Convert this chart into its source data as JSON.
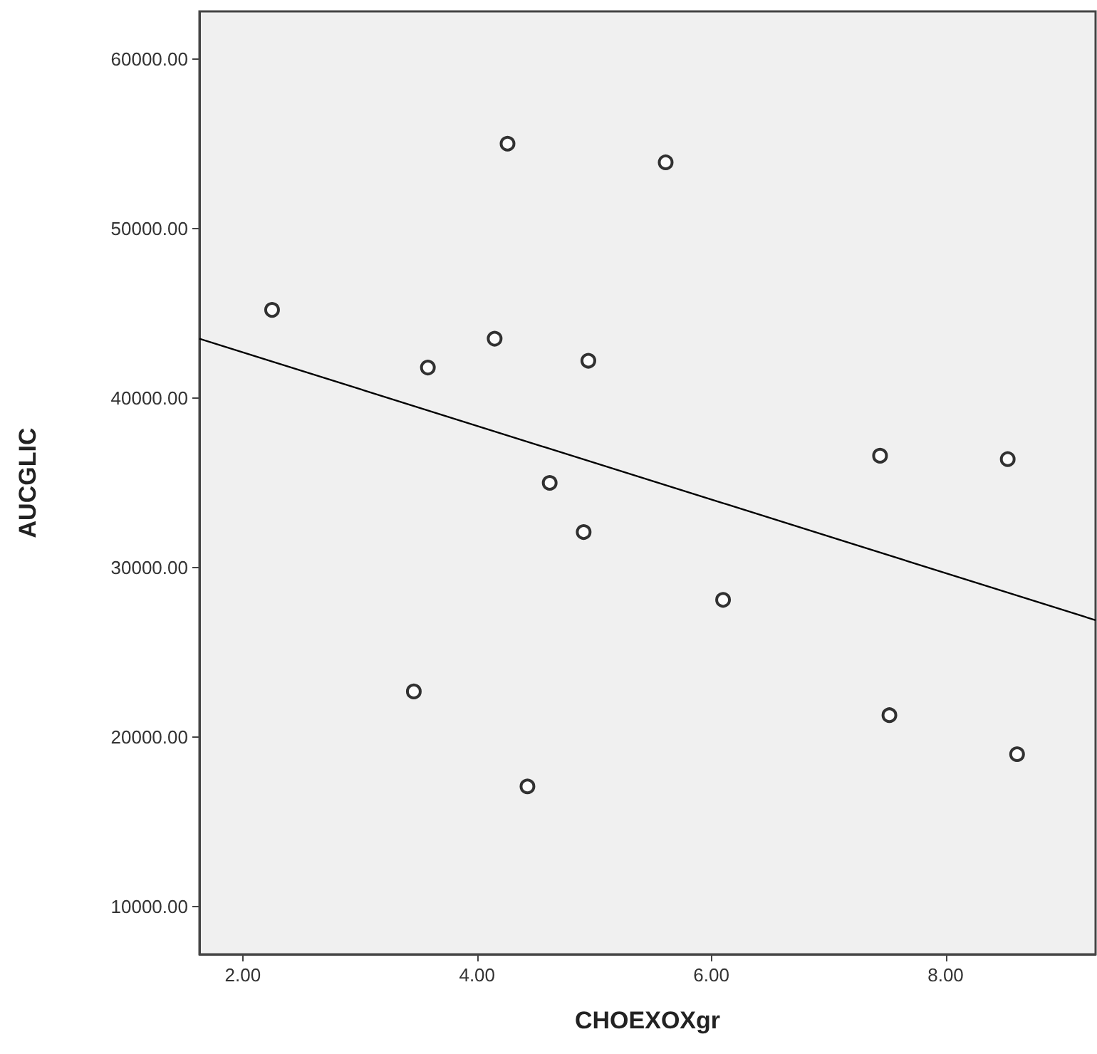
{
  "chart_data": {
    "type": "scatter",
    "xlabel": "CHOEXOXgr",
    "ylabel": "AUCGLIC",
    "xlim": [
      1.63,
      9.28
    ],
    "ylim": [
      7200,
      62800
    ],
    "xticks": [
      {
        "value": 2,
        "label": "2.00"
      },
      {
        "value": 4,
        "label": "4.00"
      },
      {
        "value": 6,
        "label": "6.00"
      },
      {
        "value": 8,
        "label": "8.00"
      }
    ],
    "yticks": [
      {
        "value": 10000,
        "label": "10000.00"
      },
      {
        "value": 20000,
        "label": "20000.00"
      },
      {
        "value": 30000,
        "label": "30000.00"
      },
      {
        "value": 40000,
        "label": "40000.00"
      },
      {
        "value": 50000,
        "label": "50000.00"
      },
      {
        "value": 60000,
        "label": "60000.00"
      }
    ],
    "grid": false,
    "series": [
      {
        "color": "#000000",
        "marker": "circle",
        "x": [
          2.25,
          3.58,
          4.15,
          4.26,
          4.95,
          4.62,
          4.91,
          3.46,
          4.43,
          5.61,
          7.44,
          8.53,
          6.1,
          7.52,
          8.61
        ],
        "values": [
          45200,
          41800,
          43500,
          55000,
          42200,
          35000,
          32100,
          22700,
          17100,
          53900,
          36600,
          36400,
          28100,
          21300,
          19000
        ]
      },
      {
        "type": "line",
        "color": "#000000",
        "marker": "none",
        "line_style": "solid",
        "x": [
          1.63,
          9.28
        ],
        "values": [
          43500,
          26900
        ]
      }
    ]
  }
}
